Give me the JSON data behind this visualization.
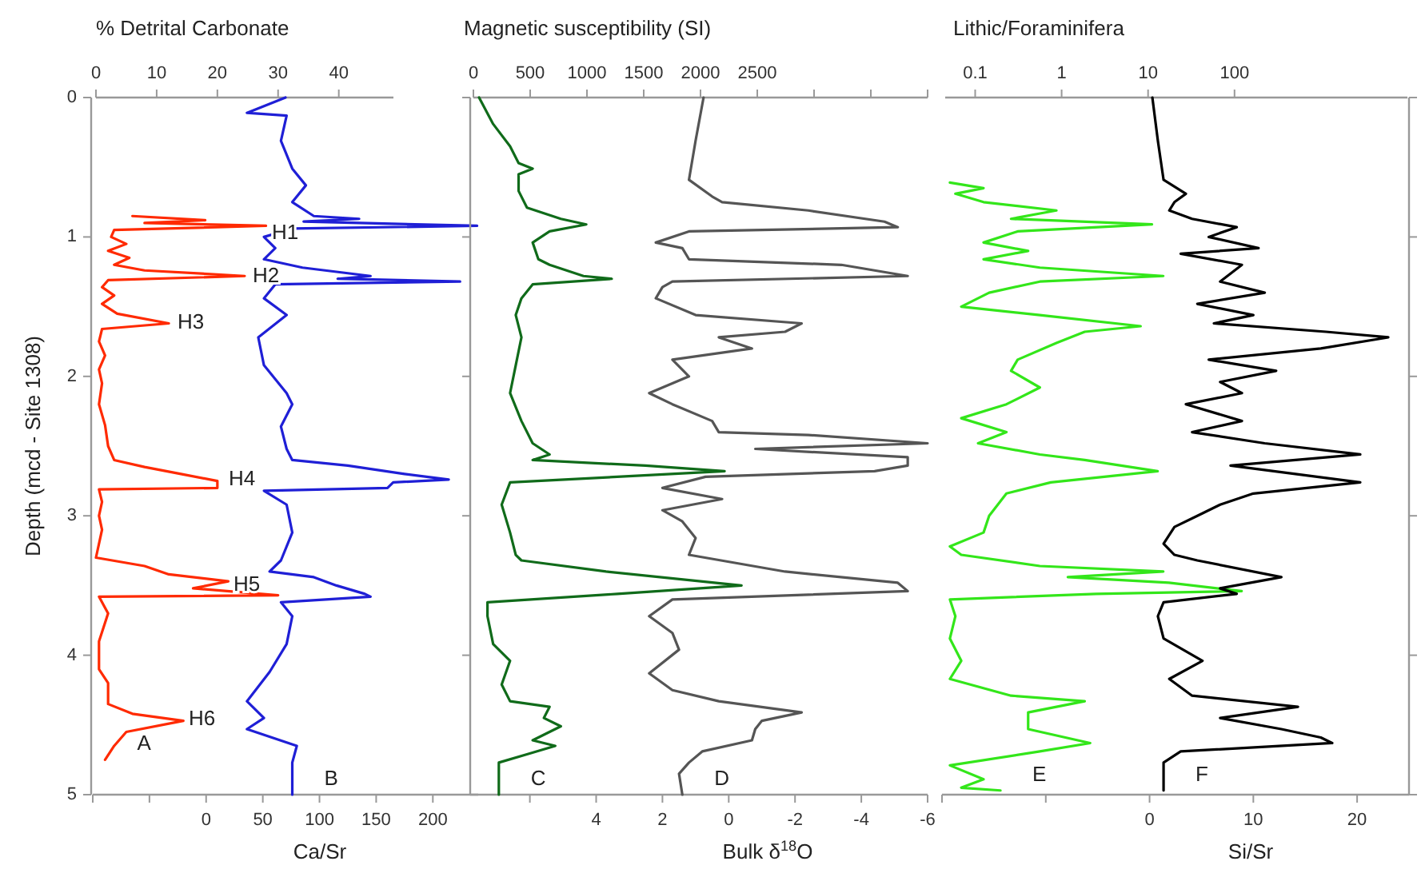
{
  "chart_data": [
    {
      "type": "line",
      "x2label": "% Detrital Carbonate",
      "xlabel": "Ca/Sr",
      "ylabel": "Depth (mcd - Site 1308)",
      "ylim": [
        5,
        0
      ],
      "yticks": [
        0,
        1,
        2,
        3,
        4,
        5
      ],
      "x2lim": [
        0,
        49
      ],
      "x2ticks": [
        0,
        10,
        20,
        30,
        40
      ],
      "xlim": [
        -100,
        240
      ],
      "xticks": [
        {
          "value": -100,
          "label": null
        },
        {
          "value": -50,
          "label": null
        },
        0,
        50,
        100,
        150,
        200
      ],
      "series": [
        {
          "name": "A",
          "color": "#ff2a00",
          "axis": "x2",
          "x": [
            6,
            18,
            8,
            28,
            3,
            2.5,
            5,
            2,
            5.5,
            3,
            8,
            24.5,
            2,
            1,
            3,
            1,
            3.5,
            12,
            1,
            0.5,
            1.5,
            0.5,
            1,
            0.5,
            1.5,
            2,
            3,
            8,
            14,
            20,
            20,
            0.5,
            1,
            0.5,
            1,
            0,
            8,
            12,
            21.8,
            16,
            30,
            0.5,
            2,
            0.5,
            0.5,
            2,
            2,
            6,
            14.4,
            5,
            3,
            1.5
          ],
          "values": [
            0.85,
            0.88,
            0.9,
            0.92,
            0.95,
            1.0,
            1.05,
            1.1,
            1.15,
            1.2,
            1.24,
            1.28,
            1.31,
            1.36,
            1.42,
            1.48,
            1.55,
            1.62,
            1.66,
            1.75,
            1.85,
            1.95,
            2.05,
            2.2,
            2.35,
            2.5,
            2.6,
            2.65,
            2.7,
            2.75,
            2.8,
            2.81,
            2.9,
            3.0,
            3.1,
            3.3,
            3.36,
            3.42,
            3.47,
            3.52,
            3.57,
            3.58,
            3.7,
            3.9,
            4.1,
            4.2,
            4.35,
            4.42,
            4.47,
            4.55,
            4.65,
            4.75
          ]
        },
        {
          "name": "B",
          "color": "#1f1fd6",
          "x": [
            70,
            36,
            71,
            66,
            76,
            88,
            76,
            95,
            135,
            86,
            239,
            76,
            51,
            61,
            51,
            85,
            145,
            116,
            224,
            61,
            51,
            71,
            46,
            51,
            71,
            76,
            66,
            71,
            76,
            125,
            175,
            214,
            165,
            160,
            51,
            71,
            76,
            66,
            56,
            95,
            115,
            140,
            145,
            66,
            76,
            71,
            56,
            36,
            51,
            36,
            80,
            76,
            76,
            76
          ],
          "values": [
            0.0,
            0.11,
            0.13,
            0.31,
            0.51,
            0.63,
            0.75,
            0.85,
            0.87,
            0.89,
            0.92,
            0.94,
            1.0,
            1.08,
            1.16,
            1.22,
            1.28,
            1.3,
            1.32,
            1.34,
            1.44,
            1.56,
            1.72,
            1.92,
            2.12,
            2.2,
            2.36,
            2.52,
            2.6,
            2.64,
            2.7,
            2.74,
            2.76,
            2.8,
            2.82,
            2.92,
            3.12,
            3.32,
            3.4,
            3.44,
            3.5,
            3.56,
            3.58,
            3.62,
            3.72,
            3.92,
            4.12,
            4.33,
            4.45,
            4.53,
            4.65,
            4.77,
            4.88,
            5.0
          ]
        }
      ],
      "annotations": [
        "H1",
        "H2",
        "H3",
        "H4",
        "H5",
        "H6"
      ]
    },
    {
      "type": "line",
      "x2label": "Magnetic susceptibility (SI)",
      "xlabel": "Bulk δ$^{18}$O",
      "tick_labels": "x",
      "ylim": [
        5,
        0
      ],
      "yticks": [
        0,
        1,
        2,
        3,
        4,
        5
      ],
      "x2lim": [
        0,
        4000
      ],
      "x2ticks": [
        0,
        500,
        1000,
        1500,
        2000,
        2500,
        {
          "value": 3000,
          "label": null
        },
        {
          "value": 3500,
          "label": null
        },
        {
          "value": 4000,
          "label": null
        }
      ],
      "xlim": [
        7.8,
        -6
      ],
      "xticks": [
        {
          "value": 6,
          "label": null
        },
        4,
        2,
        0,
        -2,
        -4,
        -6
      ],
      "series": [
        {
          "name": "C",
          "color": "#106b1a",
          "axis": "x2",
          "x": [
            50,
            174,
            323,
            398,
            522,
            398,
            398,
            472,
            770,
            994,
            671,
            522,
            572,
            671,
            969,
            1218,
            522,
            423,
            373,
            423,
            373,
            323,
            423,
            522,
            671,
            522,
            1516,
            2212,
            1267,
            323,
            249,
            323,
            373,
            423,
            1168,
            2361,
            1267,
            124,
            124,
            174,
            323,
            249,
            323,
            671,
            621,
            770,
            522,
            721,
            472,
            224,
            224
          ],
          "values": [
            0.0,
            0.19,
            0.35,
            0.47,
            0.51,
            0.55,
            0.67,
            0.79,
            0.87,
            0.91,
            0.96,
            1.04,
            1.16,
            1.2,
            1.28,
            1.3,
            1.34,
            1.44,
            1.56,
            1.72,
            1.92,
            2.12,
            2.32,
            2.48,
            2.56,
            2.6,
            2.64,
            2.68,
            2.72,
            2.76,
            2.92,
            3.12,
            3.28,
            3.32,
            3.4,
            3.5,
            3.56,
            3.62,
            3.72,
            3.92,
            4.04,
            4.21,
            4.33,
            4.37,
            4.45,
            4.51,
            4.61,
            4.65,
            4.71,
            4.77,
            5.0
          ]
        },
        {
          "name": "D",
          "color": "#555555",
          "x": [
            0.76,
            1.0,
            1.2,
            0.5,
            0.2,
            -2.4,
            -4.7,
            -5.1,
            1.2,
            2.2,
            1.4,
            1.2,
            -3.4,
            -5.4,
            1.7,
            2.0,
            2.2,
            1.0,
            -2.2,
            -1.7,
            0.3,
            -0.7,
            1.7,
            1.2,
            2.4,
            1.7,
            0.5,
            0.3,
            -2.4,
            -6.0,
            -0.8,
            -5.4,
            -5.4,
            -4.4,
            0.7,
            2.0,
            0.2,
            2.0,
            1.4,
            1.0,
            1.2,
            -1.7,
            -5.1,
            -5.4,
            1.7,
            2.4,
            1.7,
            1.5,
            2.4,
            1.7,
            0.3,
            -2.2,
            -1.0,
            -0.8,
            -0.7,
            0.8,
            1.2,
            1.5,
            1.4
          ],
          "values": [
            0.0,
            0.31,
            0.59,
            0.71,
            0.75,
            0.81,
            0.89,
            0.93,
            0.96,
            1.04,
            1.08,
            1.16,
            1.2,
            1.28,
            1.32,
            1.36,
            1.44,
            1.56,
            1.62,
            1.68,
            1.72,
            1.8,
            1.88,
            2.0,
            2.12,
            2.2,
            2.32,
            2.4,
            2.42,
            2.48,
            2.52,
            2.58,
            2.64,
            2.68,
            2.72,
            2.8,
            2.88,
            2.96,
            3.04,
            3.16,
            3.28,
            3.4,
            3.48,
            3.54,
            3.6,
            3.72,
            3.84,
            3.96,
            4.13,
            4.25,
            4.33,
            4.41,
            4.47,
            4.53,
            4.61,
            4.69,
            4.77,
            4.85,
            5.0
          ]
        }
      ]
    },
    {
      "type": "line",
      "x2label": "Lithic/Foraminifera",
      "xlabel": "Si/Sr",
      "tick_labels": "x",
      "log": "x2",
      "ylim": [
        5,
        0
      ],
      "yticks": [
        0,
        1,
        2,
        3,
        4,
        5
      ],
      "x2lim": [
        0.045,
        10000
      ],
      "x2ticks": [
        0.1,
        1,
        10,
        100
      ],
      "xlim": [
        -20,
        25
      ],
      "xticks": [
        {
          "value": -20,
          "label": null
        },
        {
          "value": -10,
          "label": null
        },
        0,
        10,
        20
      ],
      "series": [
        {
          "name": "E",
          "color": "#33e61a",
          "axis": "x2",
          "x": [
            0.051,
            0.125,
            0.059,
            0.125,
            0.87,
            0.26,
            11.1,
            0.31,
            0.125,
            0.41,
            0.125,
            0.56,
            15,
            0.56,
            0.145,
            0.069,
            0.56,
            8.2,
            1.85,
            0.87,
            0.31,
            0.26,
            0.56,
            0.23,
            0.069,
            0.23,
            0.108,
            0.56,
            1.85,
            12.9,
            0.75,
            0.23,
            0.145,
            0.125,
            0.051,
            0.069,
            0.56,
            15,
            1.18,
            17.4,
            121,
            2.5,
            0.051,
            0.059,
            0.051,
            0.069,
            0.051,
            0.26,
            1.85,
            0.41,
            0.41,
            2.14,
            0.56,
            0.051,
            0.125,
            0.069,
            0.196
          ],
          "values": [
            0.61,
            0.65,
            0.69,
            0.75,
            0.81,
            0.87,
            0.91,
            0.96,
            1.04,
            1.1,
            1.16,
            1.22,
            1.28,
            1.32,
            1.4,
            1.5,
            1.56,
            1.64,
            1.68,
            1.76,
            1.88,
            1.96,
            2.08,
            2.2,
            2.3,
            2.4,
            2.48,
            2.56,
            2.6,
            2.68,
            2.76,
            2.84,
            3.0,
            3.12,
            3.22,
            3.28,
            3.36,
            3.4,
            3.44,
            3.48,
            3.54,
            3.56,
            3.6,
            3.72,
            3.88,
            4.04,
            4.17,
            4.29,
            4.33,
            4.41,
            4.53,
            4.63,
            4.69,
            4.79,
            4.89,
            4.95,
            4.97
          ]
        },
        {
          "name": "F",
          "color": "#000000",
          "x": [
            0.27,
            0.8,
            1.35,
            3.5,
            2.4,
            1.9,
            4.1,
            8.4,
            5.7,
            10.5,
            3.0,
            8.9,
            6.8,
            11.1,
            4.6,
            10,
            6.2,
            17,
            23,
            16.5,
            5.7,
            12.2,
            6.8,
            8.9,
            3.5,
            8.9,
            4.1,
            11.1,
            20.3,
            7.8,
            20.3,
            10,
            6.8,
            4.6,
            2.4,
            1.35,
            2.4,
            4.6,
            12.7,
            6.8,
            8.4,
            1.35,
            0.8,
            1.35,
            5.1,
            1.9,
            4.1,
            14.3,
            6.8,
            12.7,
            16.5,
            17.6,
            3.0,
            1.35,
            1.35,
            1.35
          ],
          "values": [
            0.0,
            0.31,
            0.59,
            0.69,
            0.75,
            0.81,
            0.87,
            0.93,
            1.0,
            1.08,
            1.12,
            1.2,
            1.32,
            1.4,
            1.48,
            1.56,
            1.62,
            1.68,
            1.72,
            1.8,
            1.88,
            1.96,
            2.04,
            2.12,
            2.2,
            2.32,
            2.4,
            2.48,
            2.56,
            2.64,
            2.76,
            2.84,
            2.92,
            3.0,
            3.08,
            3.2,
            3.28,
            3.32,
            3.44,
            3.52,
            3.56,
            3.62,
            3.72,
            3.88,
            4.04,
            4.17,
            4.29,
            4.37,
            4.45,
            4.53,
            4.59,
            4.63,
            4.69,
            4.77,
            4.89,
            4.97
          ]
        }
      ]
    }
  ]
}
